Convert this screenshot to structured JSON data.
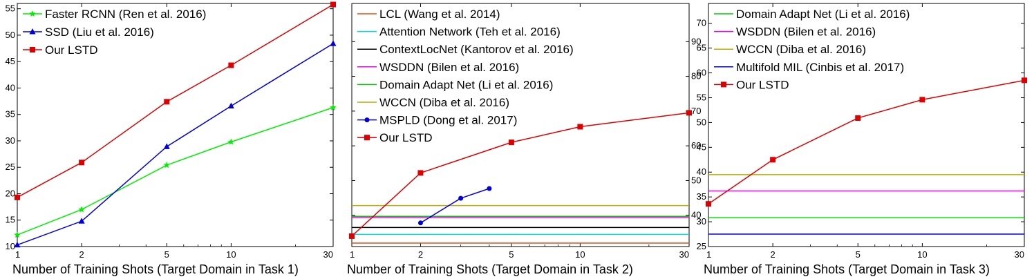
{
  "chart_data": [
    {
      "type": "line",
      "xscale": "log",
      "xlim": [
        1,
        30
      ],
      "ylim": [
        10,
        56
      ],
      "xticks": [
        1,
        2,
        5,
        10,
        30
      ],
      "yticks": [
        10,
        15,
        20,
        25,
        30,
        35,
        40,
        45,
        50,
        55
      ],
      "xlabel": "Number of Training Shots (Target Domain in Task 1)",
      "legend": "top-left",
      "series": [
        {
          "name": "Faster RCNN (Ren et al. 2016)",
          "color": "#00ee00",
          "marker": "star",
          "x": [
            1,
            2,
            5,
            10,
            30
          ],
          "y": [
            12.2,
            17.0,
            25.4,
            29.8,
            36.3
          ]
        },
        {
          "name": "SSD (Liu et al. 2016)",
          "color": "#0000dd",
          "marker": "triangle",
          "x": [
            1,
            2,
            5,
            10,
            30
          ],
          "y": [
            10.3,
            14.8,
            28.9,
            36.6,
            48.4
          ]
        },
        {
          "name": "Our LSTD",
          "color": "#dd0000",
          "marker": "square",
          "x": [
            1,
            2,
            5,
            10,
            30
          ],
          "y": [
            19.3,
            25.9,
            37.4,
            44.3,
            55.8
          ]
        }
      ]
    },
    {
      "type": "line",
      "xscale": "log",
      "xlim": [
        1,
        30
      ],
      "ylim": [
        31,
        101
      ],
      "xticks": [
        1,
        2,
        5,
        10,
        30
      ],
      "yticks": [
        40,
        50,
        60,
        70,
        80,
        90
      ],
      "xlabel": "Number of Training Shots (Target Domain in Task 2)",
      "legend": "top-left",
      "series": [
        {
          "name": "LCL (Wang et al. 2014)",
          "color": "#e05010",
          "marker": "none",
          "x": [
            1,
            30
          ],
          "y": [
            32.0,
            32.0
          ]
        },
        {
          "name": "Attention Network (Teh et al. 2016)",
          "color": "#00dddd",
          "marker": "none",
          "x": [
            1,
            30
          ],
          "y": [
            34.5,
            34.5
          ]
        },
        {
          "name": "ContextLocNet (Kantorov et al. 2016)",
          "color": "#000000",
          "marker": "none",
          "x": [
            1,
            30
          ],
          "y": [
            36.5,
            36.5
          ]
        },
        {
          "name": "WSDDN (Bilen et al. 2016)",
          "color": "#ee00ee",
          "marker": "none",
          "x": [
            1,
            30
          ],
          "y": [
            39.3,
            39.3
          ]
        },
        {
          "name": "Domain Adapt Net (Li et al. 2016)",
          "color": "#00cc00",
          "marker": "none",
          "x": [
            1,
            30
          ],
          "y": [
            39.7,
            39.7
          ]
        },
        {
          "name": "WCCN (Diba et al. 2016)",
          "color": "#bbaa00",
          "marker": "none",
          "x": [
            1,
            30
          ],
          "y": [
            42.8,
            42.8
          ]
        },
        {
          "name": "MSPLD (Dong et al. 2017)",
          "color": "#0000dd",
          "marker": "circle",
          "x": [
            2,
            3,
            4
          ],
          "y": [
            37.8,
            44.9,
            47.7
          ]
        },
        {
          "name": "Our LSTD",
          "color": "#dd0000",
          "marker": "square",
          "x": [
            1,
            2,
            5,
            10,
            30
          ],
          "y": [
            34.0,
            52.2,
            61.0,
            65.5,
            69.5
          ]
        }
      ]
    },
    {
      "type": "line",
      "xscale": "log",
      "xlim": [
        1,
        30
      ],
      "ylim": [
        25,
        74
      ],
      "xticks": [
        1,
        2,
        5,
        10,
        30
      ],
      "yticks": [
        25,
        30,
        35,
        40,
        45,
        50,
        55,
        60,
        65,
        70
      ],
      "xlabel": "Number of Training Shots (Target Domain in Task 3)",
      "legend": "top-left",
      "series": [
        {
          "name": "Domain Adapt Net (Li et al. 2016)",
          "color": "#00cc00",
          "marker": "none",
          "x": [
            1,
            30
          ],
          "y": [
            30.8,
            30.8
          ]
        },
        {
          "name": "WSDDN (Bilen et al. 2016)",
          "color": "#ee00ee",
          "marker": "none",
          "x": [
            1,
            30
          ],
          "y": [
            36.2,
            36.2
          ]
        },
        {
          "name": "WCCN (Diba et al. 2016)",
          "color": "#bbaa00",
          "marker": "none",
          "x": [
            1,
            30
          ],
          "y": [
            39.5,
            39.5
          ]
        },
        {
          "name": "Multifold MIL (Cinbis et al. 2017)",
          "color": "#0000dd",
          "marker": "none",
          "x": [
            1,
            30
          ],
          "y": [
            27.5,
            27.5
          ]
        },
        {
          "name": "Our LSTD",
          "color": "#dd0000",
          "marker": "square",
          "x": [
            1,
            2,
            5,
            10,
            30
          ],
          "y": [
            33.6,
            42.5,
            50.9,
            54.6,
            58.5
          ]
        }
      ]
    }
  ]
}
